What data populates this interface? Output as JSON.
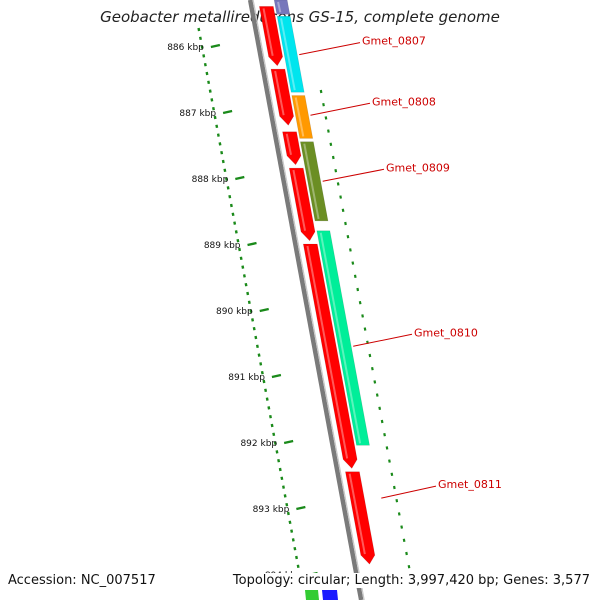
{
  "title": "Geobacter metallireducens GS-15, complete genome",
  "accession": "Accession: NC_007517",
  "topology": "Topology: circular; Length: 3,997,420 bp; Genes: 3,577",
  "ticks": [
    {
      "label": "886 kbp",
      "kbp": 886
    },
    {
      "label": "887 kbp",
      "kbp": 887
    },
    {
      "label": "888 kbp",
      "kbp": 888
    },
    {
      "label": "889 kbp",
      "kbp": 889
    },
    {
      "label": "890 kbp",
      "kbp": 890
    },
    {
      "label": "891 kbp",
      "kbp": 891
    },
    {
      "label": "892 kbp",
      "kbp": 892
    },
    {
      "label": "893 kbp",
      "kbp": 893
    },
    {
      "label": "894 kbp",
      "kbp": 894
    }
  ],
  "genes": [
    {
      "name": "Gmet_0807",
      "start_kbp": 885.55,
      "end_kbp": 886.7,
      "color": "#00e5ee"
    },
    {
      "name": "Gmet_0808",
      "start_kbp": 886.75,
      "end_kbp": 887.4,
      "color": "#ff9900"
    },
    {
      "name": "Gmet_0809",
      "start_kbp": 887.45,
      "end_kbp": 888.65,
      "color": "#6b8e23"
    },
    {
      "name": "Gmet_0810",
      "start_kbp": 888.8,
      "end_kbp": 892.05,
      "color": "#00ee99"
    }
  ],
  "labeled_genes": [
    {
      "name": "Gmet_0807",
      "kbp": 886.13
    },
    {
      "name": "Gmet_0808",
      "kbp": 887.05
    },
    {
      "name": "Gmet_0809",
      "kbp": 888.05
    },
    {
      "name": "Gmet_0810",
      "kbp": 890.55
    },
    {
      "name": "Gmet_0811",
      "kbp": 892.85
    }
  ],
  "red_blocks": [
    {
      "start_kbp": 885.4,
      "end_kbp": 886.3
    },
    {
      "start_kbp": 886.35,
      "end_kbp": 887.2
    },
    {
      "start_kbp": 887.3,
      "end_kbp": 887.8
    },
    {
      "start_kbp": 887.85,
      "end_kbp": 888.95
    },
    {
      "start_kbp": 889.0,
      "end_kbp": 892.4
    },
    {
      "start_kbp": 892.45,
      "end_kbp": 893.85
    }
  ],
  "colors": {
    "backbone": "#7a7a7a",
    "gc_plot": "#1a8a1a",
    "cds": "#ff0000",
    "label": "#cc0000"
  }
}
